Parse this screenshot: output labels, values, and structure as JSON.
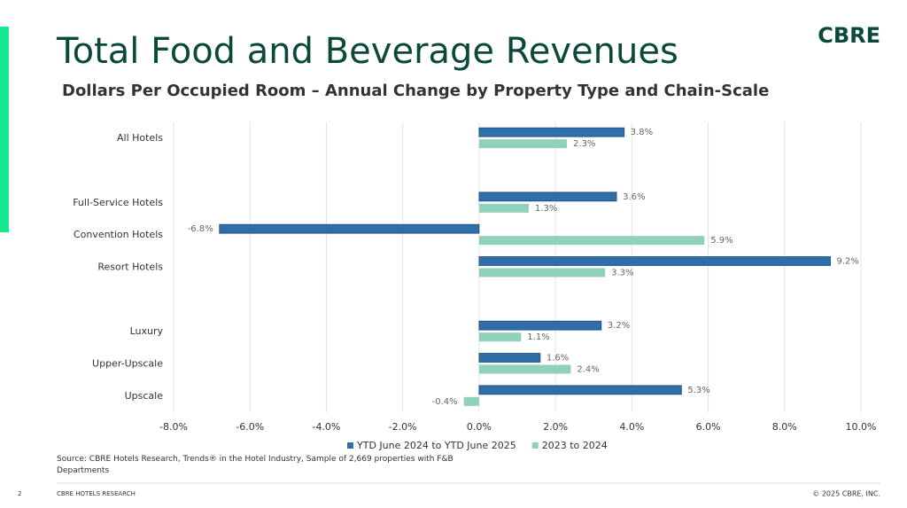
{
  "chart_data": {
    "type": "hbar",
    "title": "Total Food and Beverage Revenues",
    "subtitle": "Dollars Per Occupied Room – Annual Change by Property Type and Chain-Scale",
    "categories": [
      "All Hotels",
      null,
      "Full-Service Hotels",
      "Convention Hotels",
      "Resort Hotels",
      null,
      "Luxury",
      "Upper-Upscale",
      "Upscale"
    ],
    "series": [
      {
        "name": "YTD June 2024 to YTD June 2025",
        "color": "#2f6ea8",
        "values": [
          3.8,
          null,
          3.6,
          -6.8,
          9.2,
          null,
          3.2,
          1.6,
          5.3
        ],
        "value_labels": [
          "3.8%",
          null,
          "3.6%",
          "-6.8%",
          "9.2%",
          null,
          "3.2%",
          "1.6%",
          "5.3%"
        ]
      },
      {
        "name": "2023 to 2024",
        "color": "#8fd1bb",
        "values": [
          2.3,
          null,
          1.3,
          5.9,
          3.3,
          null,
          1.1,
          2.4,
          -0.4
        ],
        "value_labels": [
          "2.3%",
          null,
          "1.3%",
          "5.9%",
          "3.3%",
          null,
          "1.1%",
          "2.4%",
          "-0.4%"
        ]
      }
    ],
    "xlim": [
      -8,
      10
    ],
    "xticks": [
      {
        "value": -8,
        "label": "-8.0%"
      },
      {
        "value": -6,
        "label": "-6.0%"
      },
      {
        "value": -4,
        "label": "-4.0%"
      },
      {
        "value": -2,
        "label": "-2.0%"
      },
      {
        "value": 0,
        "label": "0.0%"
      },
      {
        "value": 2,
        "label": "2.0%"
      },
      {
        "value": 4,
        "label": "4.0%"
      },
      {
        "value": 6,
        "label": "6.0%"
      },
      {
        "value": 8,
        "label": "8.0%"
      },
      {
        "value": 10,
        "label": "10.0%"
      }
    ],
    "grid": true,
    "legend": "bottom"
  },
  "slide": {
    "logo": "CBRE",
    "source": "Source: CBRE Hotels Research, Trends® in the Hotel Industry, Sample of 2,669 properties with F&B Departments",
    "page": "2",
    "footer": "CBRE HOTELS RESEARCH",
    "copyright": "© 2025 CBRE, INC."
  }
}
